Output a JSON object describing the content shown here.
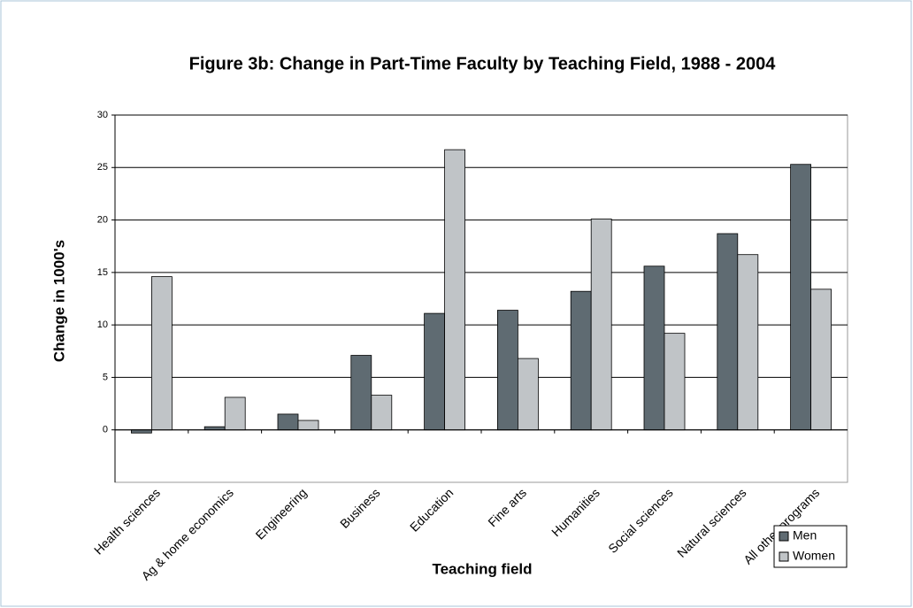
{
  "chart_data": {
    "type": "bar",
    "title": "Figure 3b: Change in Part-Time Faculty by Teaching Field, 1988 - 2004",
    "x_label": "Teaching field",
    "y_label": "Change in 1000's",
    "categories": [
      "Health sciences",
      "Ag & home economics",
      "Engineering",
      "Business",
      "Education",
      "Fine arts",
      "Humanities",
      "Social sciences",
      "Natural sciences",
      "All other programs"
    ],
    "series": [
      {
        "name": "Men",
        "color": "#5f6b72",
        "values": [
          -0.3,
          0.3,
          1.5,
          7.1,
          11.1,
          11.4,
          13.2,
          15.6,
          18.7,
          25.3
        ]
      },
      {
        "name": "Women",
        "color": "#c0c4c7",
        "values": [
          14.6,
          3.1,
          0.9,
          3.3,
          26.7,
          6.8,
          20.1,
          9.2,
          16.7,
          13.4
        ]
      }
    ],
    "ylim": [
      -5,
      30
    ],
    "yticks": [
      0,
      5,
      10,
      15,
      20,
      25,
      30
    ],
    "grid": true,
    "legend": "lower right"
  }
}
